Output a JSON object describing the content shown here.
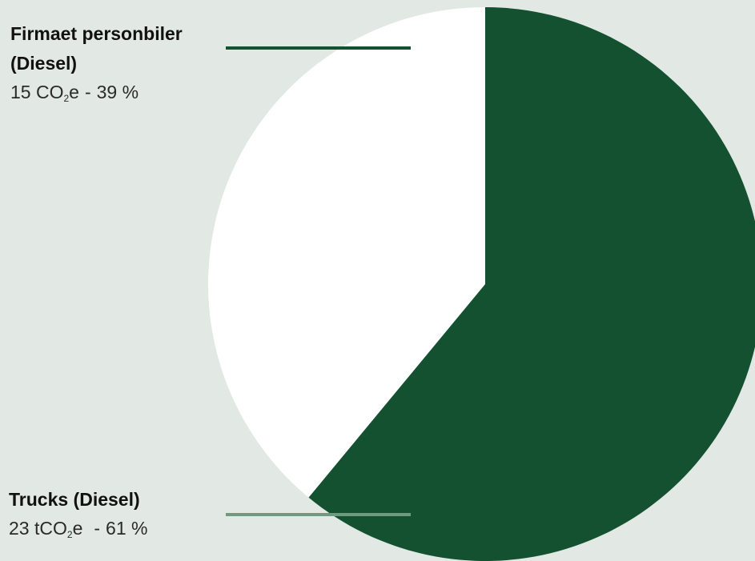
{
  "colors": {
    "background": "#e2e8e4",
    "truck_slice": "#135131",
    "car_slice": "#ffffff",
    "leader_car": "#135131",
    "leader_truck": "#6f9a80"
  },
  "chart_data": {
    "type": "pie",
    "title": "",
    "start": "12 o'clock, clockwise",
    "slices": [
      {
        "label": "Trucks (Diesel)",
        "value": 23,
        "unit_prefix": "t",
        "percent": 61,
        "percent_text": "61 %",
        "value_text": "23",
        "color": "#135131"
      },
      {
        "label": "Firmaet personbiler (Diesel)",
        "label_line1": "Firmaet personbiler",
        "label_line2": "(Diesel)",
        "value": 15,
        "unit_prefix": "",
        "percent": 39,
        "percent_text": "39 %",
        "value_text": "15",
        "color": "#ffffff"
      }
    ],
    "unit": {
      "co": "CO",
      "sub": "2",
      "e": "e"
    },
    "separator": "-"
  }
}
